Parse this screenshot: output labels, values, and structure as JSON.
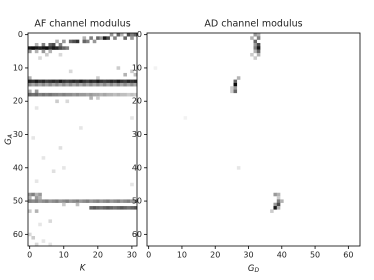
{
  "chart_data": [
    {
      "type": "heatmap",
      "title": "AF channel modulus",
      "xlabel": "K",
      "ylabel": {
        "text": "G",
        "sub": "A"
      },
      "xlim": [
        -0.5,
        31.5
      ],
      "ylim": [
        63.5,
        -0.5
      ],
      "xticks": [
        0,
        10,
        20,
        30
      ],
      "yticks": [
        0,
        10,
        20,
        30,
        40,
        50,
        60
      ],
      "vlim": [
        0,
        1
      ],
      "cmap": "gray_r",
      "cells": [
        [
          0,
          24,
          0.4
        ],
        [
          0,
          26,
          0.6
        ],
        [
          0,
          27,
          0.3
        ],
        [
          0,
          29,
          0.7
        ],
        [
          0,
          30,
          0.5
        ],
        [
          0,
          31,
          0.6
        ],
        [
          1,
          16,
          0.3
        ],
        [
          1,
          18,
          0.5
        ],
        [
          1,
          20,
          0.6
        ],
        [
          1,
          21,
          0.4
        ],
        [
          1,
          22,
          0.9
        ],
        [
          1,
          23,
          0.7
        ],
        [
          1,
          25,
          0.5
        ],
        [
          1,
          28,
          0.6
        ],
        [
          1,
          30,
          0.4
        ],
        [
          2,
          8,
          0.3
        ],
        [
          2,
          10,
          0.4
        ],
        [
          2,
          12,
          0.6
        ],
        [
          2,
          13,
          0.7
        ],
        [
          2,
          14,
          0.8
        ],
        [
          2,
          16,
          0.6
        ],
        [
          2,
          17,
          0.5
        ],
        [
          2,
          19,
          0.4
        ],
        [
          3,
          2,
          0.3
        ],
        [
          3,
          4,
          0.5
        ],
        [
          3,
          6,
          0.6
        ],
        [
          3,
          7,
          0.7
        ],
        [
          3,
          9,
          0.5
        ],
        [
          4,
          0,
          0.9
        ],
        [
          4,
          1,
          0.95
        ],
        [
          4,
          2,
          0.9
        ],
        [
          4,
          3,
          0.85
        ],
        [
          4,
          4,
          0.9
        ],
        [
          4,
          5,
          0.95
        ],
        [
          4,
          6,
          0.8
        ],
        [
          4,
          7,
          0.9
        ],
        [
          4,
          8,
          0.85
        ],
        [
          4,
          9,
          0.7
        ],
        [
          4,
          10,
          0.6
        ],
        [
          4,
          11,
          0.5
        ],
        [
          5,
          0,
          0.4
        ],
        [
          5,
          2,
          0.3
        ],
        [
          5,
          4,
          0.4
        ],
        [
          5,
          6,
          0.3
        ],
        [
          6,
          5,
          0.2
        ],
        [
          6,
          9,
          0.15
        ],
        [
          7,
          3,
          0.15
        ],
        [
          10,
          26,
          0.2
        ],
        [
          11,
          12,
          0.15
        ],
        [
          11,
          30,
          0.2
        ],
        [
          12,
          28,
          0.3
        ],
        [
          12,
          31,
          0.25
        ],
        [
          13,
          0,
          0.3
        ],
        [
          13,
          20,
          0.2
        ],
        [
          14,
          0,
          0.85
        ],
        [
          14,
          1,
          0.8
        ],
        [
          14,
          2,
          0.9
        ],
        [
          14,
          3,
          0.8
        ],
        [
          14,
          4,
          0.85
        ],
        [
          14,
          5,
          0.75
        ],
        [
          14,
          6,
          0.8
        ],
        [
          14,
          7,
          0.85
        ],
        [
          14,
          8,
          0.8
        ],
        [
          14,
          9,
          0.9
        ],
        [
          14,
          10,
          0.8
        ],
        [
          14,
          11,
          0.75
        ],
        [
          14,
          12,
          0.8
        ],
        [
          14,
          13,
          0.85
        ],
        [
          14,
          14,
          0.8
        ],
        [
          14,
          15,
          0.9
        ],
        [
          14,
          16,
          0.8
        ],
        [
          14,
          17,
          0.75
        ],
        [
          14,
          18,
          0.85
        ],
        [
          14,
          19,
          0.8
        ],
        [
          14,
          20,
          0.9
        ],
        [
          14,
          21,
          0.8
        ],
        [
          14,
          22,
          0.75
        ],
        [
          14,
          23,
          0.8
        ],
        [
          14,
          24,
          0.85
        ],
        [
          14,
          25,
          0.8
        ],
        [
          14,
          26,
          0.9
        ],
        [
          14,
          27,
          0.8
        ],
        [
          14,
          28,
          0.75
        ],
        [
          14,
          29,
          0.85
        ],
        [
          14,
          30,
          0.8
        ],
        [
          14,
          31,
          0.85
        ],
        [
          15,
          0,
          0.45
        ],
        [
          15,
          1,
          0.35
        ],
        [
          15,
          2,
          0.45
        ],
        [
          15,
          3,
          0.35
        ],
        [
          15,
          4,
          0.45
        ],
        [
          15,
          5,
          0.35
        ],
        [
          15,
          6,
          0.45
        ],
        [
          15,
          7,
          0.35
        ],
        [
          15,
          8,
          0.45
        ],
        [
          15,
          9,
          0.35
        ],
        [
          15,
          10,
          0.45
        ],
        [
          15,
          11,
          0.35
        ],
        [
          15,
          12,
          0.45
        ],
        [
          15,
          13,
          0.35
        ],
        [
          15,
          14,
          0.45
        ],
        [
          15,
          15,
          0.35
        ],
        [
          15,
          16,
          0.45
        ],
        [
          15,
          17,
          0.35
        ],
        [
          15,
          18,
          0.45
        ],
        [
          15,
          19,
          0.35
        ],
        [
          15,
          20,
          0.45
        ],
        [
          15,
          21,
          0.35
        ],
        [
          15,
          22,
          0.45
        ],
        [
          15,
          23,
          0.35
        ],
        [
          15,
          24,
          0.45
        ],
        [
          15,
          25,
          0.35
        ],
        [
          15,
          26,
          0.45
        ],
        [
          15,
          27,
          0.35
        ],
        [
          15,
          28,
          0.45
        ],
        [
          15,
          29,
          0.35
        ],
        [
          15,
          30,
          0.45
        ],
        [
          15,
          31,
          0.35
        ],
        [
          17,
          0,
          0.3
        ],
        [
          17,
          2,
          0.4
        ],
        [
          18,
          0,
          0.6
        ],
        [
          18,
          1,
          0.55
        ],
        [
          18,
          2,
          0.6
        ],
        [
          18,
          3,
          0.5
        ],
        [
          18,
          4,
          0.55
        ],
        [
          18,
          5,
          0.5
        ],
        [
          18,
          6,
          0.55
        ],
        [
          18,
          7,
          0.5
        ],
        [
          18,
          8,
          0.5
        ],
        [
          18,
          9,
          0.45
        ],
        [
          18,
          10,
          0.5
        ],
        [
          18,
          11,
          0.45
        ],
        [
          18,
          12,
          0.45
        ],
        [
          18,
          13,
          0.4
        ],
        [
          18,
          14,
          0.45
        ],
        [
          18,
          15,
          0.4
        ],
        [
          18,
          16,
          0.4
        ],
        [
          18,
          17,
          0.35
        ],
        [
          18,
          18,
          0.4
        ],
        [
          18,
          19,
          0.35
        ],
        [
          18,
          20,
          0.35
        ],
        [
          18,
          21,
          0.3
        ],
        [
          18,
          22,
          0.35
        ],
        [
          18,
          23,
          0.3
        ],
        [
          18,
          24,
          0.3
        ],
        [
          18,
          25,
          0.25
        ],
        [
          18,
          26,
          0.3
        ],
        [
          18,
          27,
          0.25
        ],
        [
          18,
          28,
          0.25
        ],
        [
          18,
          29,
          0.2
        ],
        [
          18,
          30,
          0.25
        ],
        [
          18,
          31,
          0.2
        ],
        [
          19,
          18,
          0.3
        ],
        [
          19,
          20,
          0.2
        ],
        [
          20,
          8,
          0.2
        ],
        [
          20,
          11,
          0.15
        ],
        [
          22,
          2,
          0.1
        ],
        [
          25,
          30,
          0.1
        ],
        [
          28,
          15,
          0.1
        ],
        [
          31,
          1,
          0.1
        ],
        [
          34,
          9,
          0.12
        ],
        [
          37,
          4,
          0.1
        ],
        [
          40,
          10,
          0.1
        ],
        [
          41,
          7,
          0.12
        ],
        [
          44,
          2,
          0.1
        ],
        [
          45,
          30,
          0.1
        ],
        [
          48,
          0,
          0.4
        ],
        [
          48,
          1,
          0.5
        ],
        [
          48,
          2,
          0.3
        ],
        [
          48,
          3,
          0.4
        ],
        [
          49,
          0,
          0.3
        ],
        [
          49,
          2,
          0.4
        ],
        [
          49,
          3,
          0.3
        ],
        [
          50,
          0,
          0.5
        ],
        [
          50,
          1,
          0.45
        ],
        [
          50,
          2,
          0.5
        ],
        [
          50,
          3,
          0.4
        ],
        [
          50,
          4,
          0.45
        ],
        [
          50,
          5,
          0.5
        ],
        [
          50,
          6,
          0.4
        ],
        [
          50,
          7,
          0.45
        ],
        [
          50,
          8,
          0.5
        ],
        [
          50,
          9,
          0.4
        ],
        [
          50,
          10,
          0.45
        ],
        [
          50,
          11,
          0.5
        ],
        [
          50,
          12,
          0.4
        ],
        [
          50,
          13,
          0.45
        ],
        [
          50,
          14,
          0.5
        ],
        [
          50,
          15,
          0.4
        ],
        [
          50,
          16,
          0.45
        ],
        [
          50,
          17,
          0.5
        ],
        [
          50,
          18,
          0.4
        ],
        [
          50,
          19,
          0.45
        ],
        [
          50,
          20,
          0.5
        ],
        [
          50,
          21,
          0.4
        ],
        [
          50,
          22,
          0.45
        ],
        [
          50,
          23,
          0.5
        ],
        [
          50,
          24,
          0.4
        ],
        [
          50,
          25,
          0.45
        ],
        [
          50,
          26,
          0.5
        ],
        [
          50,
          27,
          0.4
        ],
        [
          50,
          28,
          0.45
        ],
        [
          50,
          29,
          0.5
        ],
        [
          50,
          30,
          0.4
        ],
        [
          50,
          31,
          0.45
        ],
        [
          51,
          10,
          0.2
        ],
        [
          51,
          14,
          0.25
        ],
        [
          52,
          18,
          0.6
        ],
        [
          52,
          19,
          0.65
        ],
        [
          52,
          20,
          0.6
        ],
        [
          52,
          21,
          0.55
        ],
        [
          52,
          22,
          0.6
        ],
        [
          52,
          23,
          0.65
        ],
        [
          52,
          24,
          0.6
        ],
        [
          52,
          25,
          0.55
        ],
        [
          52,
          26,
          0.6
        ],
        [
          52,
          27,
          0.65
        ],
        [
          52,
          28,
          0.6
        ],
        [
          52,
          29,
          0.55
        ],
        [
          52,
          30,
          0.6
        ],
        [
          52,
          31,
          0.65
        ],
        [
          53,
          0,
          0.2
        ],
        [
          53,
          2,
          0.3
        ],
        [
          56,
          6,
          0.15
        ],
        [
          57,
          3,
          0.1
        ],
        [
          60,
          0,
          0.15
        ],
        [
          61,
          1,
          0.2
        ],
        [
          62,
          4,
          0.1
        ],
        [
          63,
          2,
          0.15
        ],
        [
          63,
          6,
          0.1
        ]
      ]
    },
    {
      "type": "heatmap",
      "title": "AD channel modulus",
      "xlabel": {
        "text": "G",
        "sub": "D"
      },
      "xlim": [
        -0.5,
        63.5
      ],
      "ylim": [
        63.5,
        -0.5
      ],
      "xticks": [
        0,
        10,
        20,
        30,
        40,
        50,
        60
      ],
      "yticks": [
        0,
        10,
        20,
        30,
        40,
        50,
        60
      ],
      "vlim": [
        0,
        1
      ],
      "cmap": "gray_r",
      "cells": [
        [
          0,
          32,
          0.4
        ],
        [
          0,
          33,
          0.3
        ],
        [
          1,
          31,
          0.3
        ],
        [
          1,
          33,
          0.5
        ],
        [
          2,
          32,
          0.6
        ],
        [
          3,
          32,
          0.4
        ],
        [
          3,
          33,
          0.7
        ],
        [
          4,
          32,
          0.5
        ],
        [
          4,
          33,
          0.9
        ],
        [
          5,
          32,
          0.3
        ],
        [
          5,
          33,
          0.6
        ],
        [
          6,
          31,
          0.2
        ],
        [
          6,
          33,
          0.3
        ],
        [
          7,
          32,
          0.2
        ],
        [
          13,
          27,
          0.3
        ],
        [
          14,
          26,
          0.6
        ],
        [
          15,
          26,
          0.95
        ],
        [
          16,
          25,
          0.2
        ],
        [
          16,
          26,
          0.4
        ],
        [
          17,
          25,
          0.2
        ],
        [
          17,
          26,
          0.6
        ],
        [
          10,
          2,
          0.05
        ],
        [
          25,
          11,
          0.05
        ],
        [
          40,
          27,
          0.1
        ],
        [
          48,
          38,
          0.4
        ],
        [
          48,
          39,
          0.3
        ],
        [
          49,
          39,
          0.2
        ],
        [
          50,
          39,
          0.5
        ],
        [
          50,
          40,
          0.3
        ],
        [
          51,
          38,
          0.4
        ],
        [
          51,
          39,
          0.7
        ],
        [
          52,
          38,
          0.9
        ],
        [
          52,
          39,
          0.3
        ],
        [
          53,
          37,
          0.2
        ]
      ]
    }
  ]
}
